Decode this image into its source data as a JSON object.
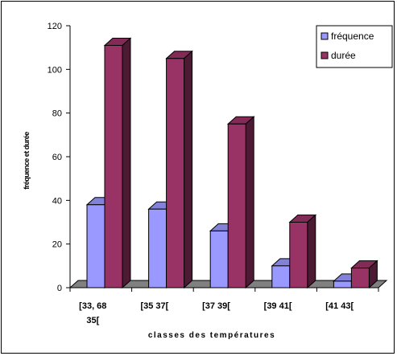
{
  "chart_data": {
    "type": "bar",
    "title": "",
    "xlabel": "classes des températures",
    "ylabel": "fréquence et durée",
    "categories": [
      [
        "[33, 68",
        "35["
      ],
      [
        "[35",
        "37["
      ],
      [
        "[37",
        "39["
      ],
      [
        "[39",
        "41["
      ],
      [
        "[41",
        "43["
      ]
    ],
    "series": [
      {
        "name": "fréquence",
        "values": [
          38,
          36,
          26,
          10,
          3
        ],
        "color": "#9999ff"
      },
      {
        "name": "durée",
        "values": [
          111,
          105,
          75,
          30,
          9
        ],
        "color": "#993366"
      }
    ],
    "ylim": [
      0,
      120
    ],
    "yticks": [
      "0",
      "20",
      "40",
      "60",
      "80",
      "100",
      "120"
    ],
    "grid": false,
    "legend_position": "top-right",
    "three_d": true
  }
}
